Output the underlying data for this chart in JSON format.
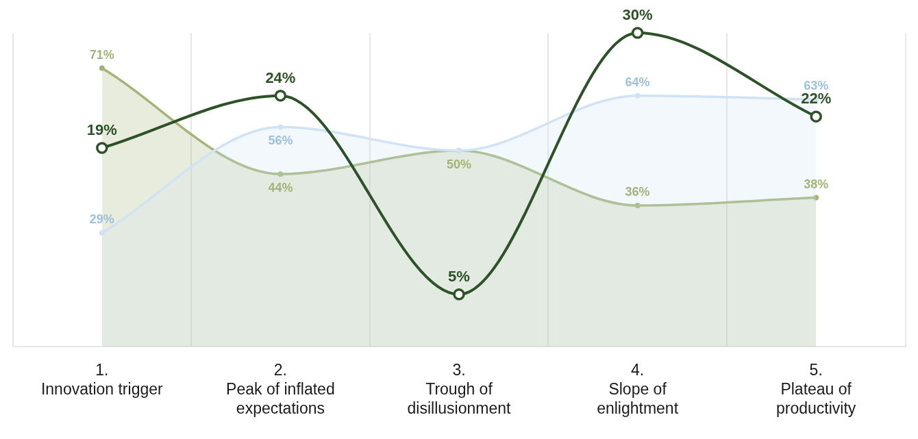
{
  "chart_data": {
    "type": "line",
    "categories": [
      "1.\nInnovation trigger",
      "2.\nPeak of inflated expectations",
      "3.\nTrough of disillusionment",
      "4.\nSlope of enlightment",
      "5.\nPlateau of productivity"
    ],
    "series": [
      {
        "type": "area",
        "axis": "y2",
        "color": "#cfe3f5",
        "values": [
          29,
          56,
          50,
          64,
          63
        ],
        "value_labels": [
          "29%",
          "56%",
          null,
          "64%",
          "63%"
        ]
      },
      {
        "type": "area",
        "axis": "y2",
        "color": "#a3b477",
        "values": [
          71,
          44,
          50,
          36,
          38
        ],
        "value_labels": [
          "71%",
          "44%",
          "50%",
          "36%",
          "38%"
        ]
      },
      {
        "color": "#2d5227",
        "values": [
          19,
          24,
          5,
          30,
          22
        ],
        "value_labels": [
          "19%",
          "24%",
          "5%",
          "30%",
          "22%"
        ]
      }
    ],
    "grid": "x",
    "marker": "circle",
    "legend": false
  }
}
